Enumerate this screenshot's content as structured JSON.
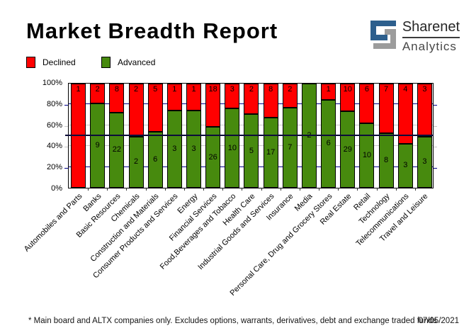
{
  "header": {
    "title": "Market Breadth Report"
  },
  "logo": {
    "name_top": "Sharenet",
    "name_bottom": "Analytics",
    "icon_blue": "#2d5f8d",
    "icon_gray": "#9c9c9c"
  },
  "legend": {
    "items": [
      {
        "label": "Declined",
        "color": "#ff0000"
      },
      {
        "label": "Advanced",
        "color": "#478a0e"
      }
    ]
  },
  "chart_data": {
    "type": "bar",
    "stacked": true,
    "normalized_to_percent": true,
    "title": "Market Breadth Report",
    "categories": [
      "Automobiles and Parts",
      "Banks",
      "Basic Resources",
      "Chemicals",
      "Construction and Materials",
      "Consumer Products and Services",
      "Energy",
      "Financial Services",
      "Food,Beverages and Tobacco",
      "Health Care",
      "Industrial Goods and Services",
      "Insurance",
      "Media",
      "Personal Care, Drug and Grocery Stores",
      "Real Estate",
      "Retail",
      "Technology",
      "Telecommunications",
      "Travel and Leisure"
    ],
    "series": [
      {
        "name": "Declined",
        "color": "#ff0000",
        "values": [
          1,
          2,
          8,
          2,
          5,
          1,
          1,
          18,
          3,
          2,
          8,
          2,
          0,
          1,
          10,
          6,
          7,
          4,
          3
        ]
      },
      {
        "name": "Advanced",
        "color": "#478a0e",
        "values": [
          0,
          9,
          22,
          2,
          6,
          3,
          3,
          26,
          10,
          5,
          17,
          7,
          2,
          6,
          29,
          10,
          8,
          3,
          3
        ]
      }
    ],
    "y_ticks": [
      "0%",
      "20%",
      "40%",
      "60%",
      "80%",
      "100%"
    ],
    "ylim": [
      0,
      100
    ],
    "reference_line_percent": 50,
    "gridlines": {
      "navy_percents": [
        20,
        80
      ],
      "gray_percents": [
        40,
        60
      ],
      "navy_color": "#00008b",
      "gray_color": "#c8c8c8",
      "reference_color": "#0d0d3a"
    },
    "legend_position": "top-left"
  },
  "footer": {
    "note": "* Main board and ALTX companies only. Excludes options, warrants, derivatives, debt and exchange traded funds",
    "date": "07/05/2021"
  }
}
